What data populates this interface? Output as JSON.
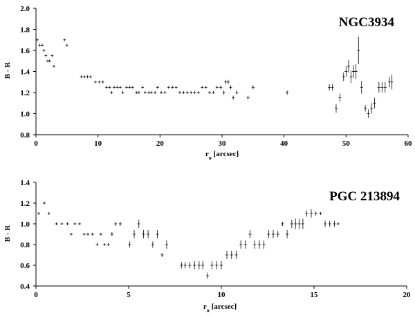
{
  "chart_data": [
    {
      "type": "scatter",
      "title": "NGC3934",
      "xlabel": "r",
      "xlabel_sub": "o",
      "xlabel_unit": "[arcsec]",
      "ylabel": "B - R",
      "xlim": [
        0,
        60
      ],
      "ylim": [
        0.8,
        2.0
      ],
      "x_ticks": [
        "0",
        "10",
        "20",
        "30",
        "40",
        "50",
        "60"
      ],
      "x_tick_values": [
        0,
        10,
        20,
        30,
        40,
        50,
        60
      ],
      "y_ticks": [
        "0.8",
        "1.0",
        "1.2",
        "1.4",
        "1.6",
        "1.8",
        "2.0"
      ],
      "y_tick_values": [
        0.8,
        1.0,
        1.2,
        1.4,
        1.6,
        1.8,
        2.0
      ],
      "grid": false,
      "points": [
        {
          "x": 0.2,
          "y": 1.7,
          "e": 0.01
        },
        {
          "x": 0.6,
          "y": 1.65,
          "e": 0.01
        },
        {
          "x": 1.0,
          "y": 1.65,
          "e": 0.01
        },
        {
          "x": 1.3,
          "y": 1.6,
          "e": 0.01
        },
        {
          "x": 1.6,
          "y": 1.55,
          "e": 0.01
        },
        {
          "x": 1.9,
          "y": 1.5,
          "e": 0.01
        },
        {
          "x": 2.2,
          "y": 1.5,
          "e": 0.01
        },
        {
          "x": 2.6,
          "y": 1.55,
          "e": 0.01
        },
        {
          "x": 2.9,
          "y": 1.45,
          "e": 0.01
        },
        {
          "x": 4.6,
          "y": 1.7,
          "e": 0.01
        },
        {
          "x": 5.0,
          "y": 1.65,
          "e": 0.01
        },
        {
          "x": 7.3,
          "y": 1.35,
          "e": 0.01
        },
        {
          "x": 7.8,
          "y": 1.35,
          "e": 0.01
        },
        {
          "x": 8.3,
          "y": 1.35,
          "e": 0.01
        },
        {
          "x": 8.8,
          "y": 1.35,
          "e": 0.01
        },
        {
          "x": 9.6,
          "y": 1.3,
          "e": 0.01
        },
        {
          "x": 10.2,
          "y": 1.3,
          "e": 0.01
        },
        {
          "x": 10.8,
          "y": 1.3,
          "e": 0.01
        },
        {
          "x": 11.4,
          "y": 1.25,
          "e": 0.01
        },
        {
          "x": 11.9,
          "y": 1.25,
          "e": 0.01
        },
        {
          "x": 12.2,
          "y": 1.2,
          "e": 0.01
        },
        {
          "x": 12.6,
          "y": 1.25,
          "e": 0.01
        },
        {
          "x": 13.1,
          "y": 1.25,
          "e": 0.01
        },
        {
          "x": 13.6,
          "y": 1.25,
          "e": 0.01
        },
        {
          "x": 14.0,
          "y": 1.2,
          "e": 0.01
        },
        {
          "x": 14.6,
          "y": 1.25,
          "e": 0.01
        },
        {
          "x": 15.1,
          "y": 1.25,
          "e": 0.01
        },
        {
          "x": 15.6,
          "y": 1.25,
          "e": 0.01
        },
        {
          "x": 16.2,
          "y": 1.2,
          "e": 0.01
        },
        {
          "x": 16.6,
          "y": 1.2,
          "e": 0.01
        },
        {
          "x": 17.2,
          "y": 1.25,
          "e": 0.01
        },
        {
          "x": 17.6,
          "y": 1.2,
          "e": 0.01
        },
        {
          "x": 18.2,
          "y": 1.2,
          "e": 0.01
        },
        {
          "x": 18.6,
          "y": 1.2,
          "e": 0.01
        },
        {
          "x": 19.2,
          "y": 1.2,
          "e": 0.01
        },
        {
          "x": 19.6,
          "y": 1.25,
          "e": 0.01
        },
        {
          "x": 20.2,
          "y": 1.2,
          "e": 0.01
        },
        {
          "x": 20.8,
          "y": 1.2,
          "e": 0.01
        },
        {
          "x": 21.4,
          "y": 1.25,
          "e": 0.01
        },
        {
          "x": 22.0,
          "y": 1.25,
          "e": 0.01
        },
        {
          "x": 22.6,
          "y": 1.25,
          "e": 0.01
        },
        {
          "x": 23.2,
          "y": 1.2,
          "e": 0.01
        },
        {
          "x": 23.8,
          "y": 1.2,
          "e": 0.01
        },
        {
          "x": 24.4,
          "y": 1.2,
          "e": 0.01
        },
        {
          "x": 25.0,
          "y": 1.2,
          "e": 0.01
        },
        {
          "x": 25.6,
          "y": 1.2,
          "e": 0.01
        },
        {
          "x": 26.2,
          "y": 1.2,
          "e": 0.01
        },
        {
          "x": 26.8,
          "y": 1.25,
          "e": 0.01
        },
        {
          "x": 27.4,
          "y": 1.25,
          "e": 0.01
        },
        {
          "x": 28.0,
          "y": 1.2,
          "e": 0.01
        },
        {
          "x": 28.6,
          "y": 1.2,
          "e": 0.01
        },
        {
          "x": 29.2,
          "y": 1.25,
          "e": 0.01
        },
        {
          "x": 29.8,
          "y": 1.25,
          "e": 0.02
        },
        {
          "x": 30.3,
          "y": 1.2,
          "e": 0.02
        },
        {
          "x": 30.6,
          "y": 1.3,
          "e": 0.02
        },
        {
          "x": 31.0,
          "y": 1.3,
          "e": 0.02
        },
        {
          "x": 31.4,
          "y": 1.25,
          "e": 0.02
        },
        {
          "x": 31.8,
          "y": 1.15,
          "e": 0.02
        },
        {
          "x": 32.4,
          "y": 1.2,
          "e": 0.02
        },
        {
          "x": 34.2,
          "y": 1.15,
          "e": 0.02
        },
        {
          "x": 35.0,
          "y": 1.25,
          "e": 0.02
        },
        {
          "x": 40.5,
          "y": 1.2,
          "e": 0.02
        },
        {
          "x": 47.3,
          "y": 1.25,
          "e": 0.03
        },
        {
          "x": 47.8,
          "y": 1.25,
          "e": 0.03
        },
        {
          "x": 48.4,
          "y": 1.05,
          "e": 0.04
        },
        {
          "x": 49.0,
          "y": 1.15,
          "e": 0.04
        },
        {
          "x": 49.6,
          "y": 1.35,
          "e": 0.04
        },
        {
          "x": 50.0,
          "y": 1.4,
          "e": 0.05
        },
        {
          "x": 50.4,
          "y": 1.45,
          "e": 0.06
        },
        {
          "x": 50.8,
          "y": 1.35,
          "e": 0.06
        },
        {
          "x": 51.2,
          "y": 1.4,
          "e": 0.06
        },
        {
          "x": 51.6,
          "y": 1.4,
          "e": 0.07
        },
        {
          "x": 52.0,
          "y": 1.6,
          "e": 0.13
        },
        {
          "x": 52.5,
          "y": 1.25,
          "e": 0.06
        },
        {
          "x": 53.1,
          "y": 1.05,
          "e": 0.03
        },
        {
          "x": 53.6,
          "y": 1.0,
          "e": 0.04
        },
        {
          "x": 54.1,
          "y": 1.05,
          "e": 0.05
        },
        {
          "x": 54.6,
          "y": 1.1,
          "e": 0.05
        },
        {
          "x": 55.3,
          "y": 1.25,
          "e": 0.05
        },
        {
          "x": 55.8,
          "y": 1.25,
          "e": 0.05
        },
        {
          "x": 56.3,
          "y": 1.25,
          "e": 0.05
        },
        {
          "x": 57.0,
          "y": 1.3,
          "e": 0.05
        },
        {
          "x": 57.4,
          "y": 1.3,
          "e": 0.07
        }
      ]
    },
    {
      "type": "scatter",
      "title": "PGC 213894",
      "xlabel": "r",
      "xlabel_sub": "o",
      "xlabel_unit": "[arcsec]",
      "ylabel": "B - R",
      "xlim": [
        0,
        20
      ],
      "ylim": [
        0.4,
        1.4
      ],
      "x_ticks": [
        "0",
        "5",
        "10",
        "15",
        "20"
      ],
      "x_tick_values": [
        0,
        5,
        10,
        15,
        20
      ],
      "y_ticks": [
        "0.4",
        "0.6",
        "0.8",
        "1.0",
        "1.2",
        "1.4"
      ],
      "y_tick_values": [
        0.4,
        0.6,
        0.8,
        1.0,
        1.2,
        1.4
      ],
      "grid": false,
      "points": [
        {
          "x": 0.15,
          "y": 1.1,
          "e": 0.01
        },
        {
          "x": 0.45,
          "y": 1.2,
          "e": 0.01
        },
        {
          "x": 0.7,
          "y": 1.1,
          "e": 0.01
        },
        {
          "x": 1.1,
          "y": 1.0,
          "e": 0.01
        },
        {
          "x": 1.4,
          "y": 1.0,
          "e": 0.01
        },
        {
          "x": 1.7,
          "y": 1.0,
          "e": 0.01
        },
        {
          "x": 1.9,
          "y": 0.9,
          "e": 0.01
        },
        {
          "x": 2.1,
          "y": 1.0,
          "e": 0.01
        },
        {
          "x": 2.35,
          "y": 1.0,
          "e": 0.01
        },
        {
          "x": 2.6,
          "y": 0.9,
          "e": 0.01
        },
        {
          "x": 2.8,
          "y": 0.9,
          "e": 0.01
        },
        {
          "x": 3.05,
          "y": 0.9,
          "e": 0.01
        },
        {
          "x": 3.3,
          "y": 0.8,
          "e": 0.01
        },
        {
          "x": 3.5,
          "y": 0.9,
          "e": 0.01
        },
        {
          "x": 3.7,
          "y": 0.8,
          "e": 0.01
        },
        {
          "x": 3.9,
          "y": 0.8,
          "e": 0.01
        },
        {
          "x": 4.1,
          "y": 0.9,
          "e": 0.02
        },
        {
          "x": 4.3,
          "y": 1.0,
          "e": 0.02
        },
        {
          "x": 4.55,
          "y": 1.0,
          "e": 0.02
        },
        {
          "x": 5.05,
          "y": 0.8,
          "e": 0.03
        },
        {
          "x": 5.3,
          "y": 0.9,
          "e": 0.04
        },
        {
          "x": 5.55,
          "y": 1.0,
          "e": 0.04
        },
        {
          "x": 5.8,
          "y": 0.9,
          "e": 0.04
        },
        {
          "x": 6.05,
          "y": 0.9,
          "e": 0.04
        },
        {
          "x": 6.3,
          "y": 0.8,
          "e": 0.03
        },
        {
          "x": 6.55,
          "y": 0.9,
          "e": 0.04
        },
        {
          "x": 6.8,
          "y": 0.7,
          "e": 0.02
        },
        {
          "x": 7.05,
          "y": 0.8,
          "e": 0.04
        },
        {
          "x": 7.85,
          "y": 0.6,
          "e": 0.03
        },
        {
          "x": 8.05,
          "y": 0.6,
          "e": 0.03
        },
        {
          "x": 8.3,
          "y": 0.6,
          "e": 0.03
        },
        {
          "x": 8.55,
          "y": 0.6,
          "e": 0.04
        },
        {
          "x": 8.8,
          "y": 0.6,
          "e": 0.04
        },
        {
          "x": 9.0,
          "y": 0.6,
          "e": 0.04
        },
        {
          "x": 9.25,
          "y": 0.5,
          "e": 0.03
        },
        {
          "x": 9.5,
          "y": 0.6,
          "e": 0.04
        },
        {
          "x": 9.75,
          "y": 0.6,
          "e": 0.04
        },
        {
          "x": 10.0,
          "y": 0.6,
          "e": 0.04
        },
        {
          "x": 10.3,
          "y": 0.7,
          "e": 0.04
        },
        {
          "x": 10.55,
          "y": 0.7,
          "e": 0.04
        },
        {
          "x": 10.8,
          "y": 0.7,
          "e": 0.04
        },
        {
          "x": 11.05,
          "y": 0.8,
          "e": 0.04
        },
        {
          "x": 11.3,
          "y": 0.8,
          "e": 0.04
        },
        {
          "x": 11.55,
          "y": 0.9,
          "e": 0.04
        },
        {
          "x": 11.8,
          "y": 0.8,
          "e": 0.04
        },
        {
          "x": 12.05,
          "y": 0.8,
          "e": 0.04
        },
        {
          "x": 12.3,
          "y": 0.8,
          "e": 0.04
        },
        {
          "x": 12.55,
          "y": 0.9,
          "e": 0.04
        },
        {
          "x": 12.8,
          "y": 0.9,
          "e": 0.04
        },
        {
          "x": 13.05,
          "y": 0.9,
          "e": 0.03
        },
        {
          "x": 13.3,
          "y": 1.0,
          "e": 0.02
        },
        {
          "x": 13.55,
          "y": 0.9,
          "e": 0.04
        },
        {
          "x": 13.8,
          "y": 1.0,
          "e": 0.04
        },
        {
          "x": 14.0,
          "y": 1.0,
          "e": 0.05
        },
        {
          "x": 14.2,
          "y": 1.0,
          "e": 0.05
        },
        {
          "x": 14.4,
          "y": 1.0,
          "e": 0.05
        },
        {
          "x": 14.6,
          "y": 1.1,
          "e": 0.03
        },
        {
          "x": 14.85,
          "y": 1.1,
          "e": 0.04
        },
        {
          "x": 15.1,
          "y": 1.1,
          "e": 0.02
        },
        {
          "x": 15.35,
          "y": 1.1,
          "e": 0.01
        },
        {
          "x": 15.6,
          "y": 1.0,
          "e": 0.03
        },
        {
          "x": 15.85,
          "y": 1.0,
          "e": 0.03
        },
        {
          "x": 16.1,
          "y": 1.0,
          "e": 0.03
        },
        {
          "x": 16.3,
          "y": 1.0,
          "e": 0.01
        }
      ]
    }
  ]
}
